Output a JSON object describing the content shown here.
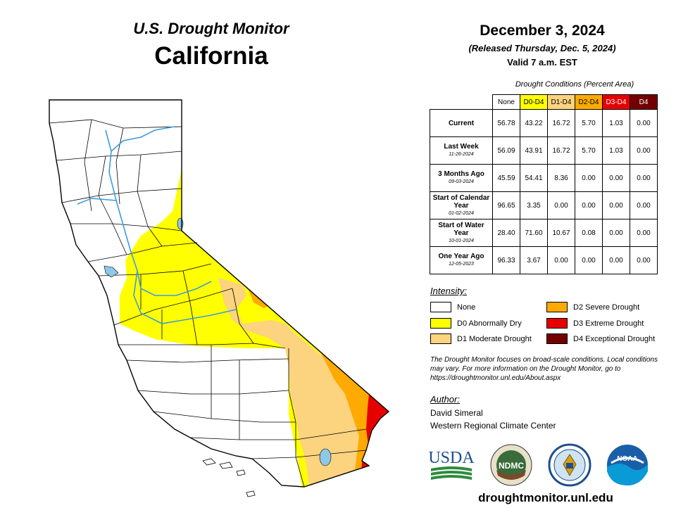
{
  "header": {
    "program": "U.S. Drought Monitor",
    "state": "California",
    "date": "December 3, 2024",
    "released": "(Released Thursday, Dec. 5, 2024)",
    "valid": "Valid 7 a.m. EST"
  },
  "table": {
    "caption": "Drought Conditions (Percent Area)",
    "columns": [
      {
        "label": "None",
        "bg": "#ffffff",
        "fg": "#000000"
      },
      {
        "label": "D0-D4",
        "bg": "#ffff00",
        "fg": "#000000"
      },
      {
        "label": "D1-D4",
        "bg": "#fcd37f",
        "fg": "#000000"
      },
      {
        "label": "D2-D4",
        "bg": "#ffaa00",
        "fg": "#000000"
      },
      {
        "label": "D3-D4",
        "bg": "#e60000",
        "fg": "#ffffff"
      },
      {
        "label": "D4",
        "bg": "#730000",
        "fg": "#ffffff"
      }
    ],
    "rows": [
      {
        "label": "Current",
        "date": "",
        "values": [
          "56.78",
          "43.22",
          "16.72",
          "5.70",
          "1.03",
          "0.00"
        ]
      },
      {
        "label": "Last Week",
        "date": "11-26-2024",
        "values": [
          "56.09",
          "43.91",
          "16.72",
          "5.70",
          "1.03",
          "0.00"
        ]
      },
      {
        "label": "3 Months Ago",
        "date": "09-03-2024",
        "values": [
          "45.59",
          "54.41",
          "8.36",
          "0.00",
          "0.00",
          "0.00"
        ]
      },
      {
        "label": "Start of Calendar Year",
        "date": "01-02-2024",
        "values": [
          "96.65",
          "3.35",
          "0.00",
          "0.00",
          "0.00",
          "0.00"
        ]
      },
      {
        "label": "Start of Water Year",
        "date": "10-01-2024",
        "values": [
          "28.40",
          "71.60",
          "10.67",
          "0.08",
          "0.00",
          "0.00"
        ]
      },
      {
        "label": "One Year Ago",
        "date": "12-05-2023",
        "values": [
          "96.33",
          "3.67",
          "0.00",
          "0.00",
          "0.00",
          "0.00"
        ]
      }
    ]
  },
  "legend": {
    "title": "Intensity:",
    "items": [
      {
        "label": "None",
        "color": "#ffffff"
      },
      {
        "label": "D0 Abnormally Dry",
        "color": "#ffff00"
      },
      {
        "label": "D1 Moderate Drought",
        "color": "#fcd37f"
      },
      {
        "label": "D2 Severe Drought",
        "color": "#ffaa00"
      },
      {
        "label": "D3 Extreme Drought",
        "color": "#e60000"
      },
      {
        "label": "D4 Exceptional Drought",
        "color": "#730000"
      }
    ]
  },
  "note": "The Drought Monitor focuses on broad-scale conditions. Local conditions may vary. For more information on the Drought Monitor, go to https://droughtmonitor.unl.edu/About.aspx",
  "author": {
    "title": "Author:",
    "name": "David Simeral",
    "org": "Western Regional Climate Center"
  },
  "logos": {
    "usda": "USDA",
    "ndmc": "NDMC",
    "noaa": "NOAA"
  },
  "footer_url": "droughtmonitor.unl.edu",
  "map_colors": {
    "none": "#ffffff",
    "d0": "#ffff00",
    "d1": "#fcd37f",
    "d2": "#ffaa00",
    "d3": "#e60000",
    "water": "#3d9bdc",
    "lake": "#8ec8e8",
    "border": "#000000"
  }
}
